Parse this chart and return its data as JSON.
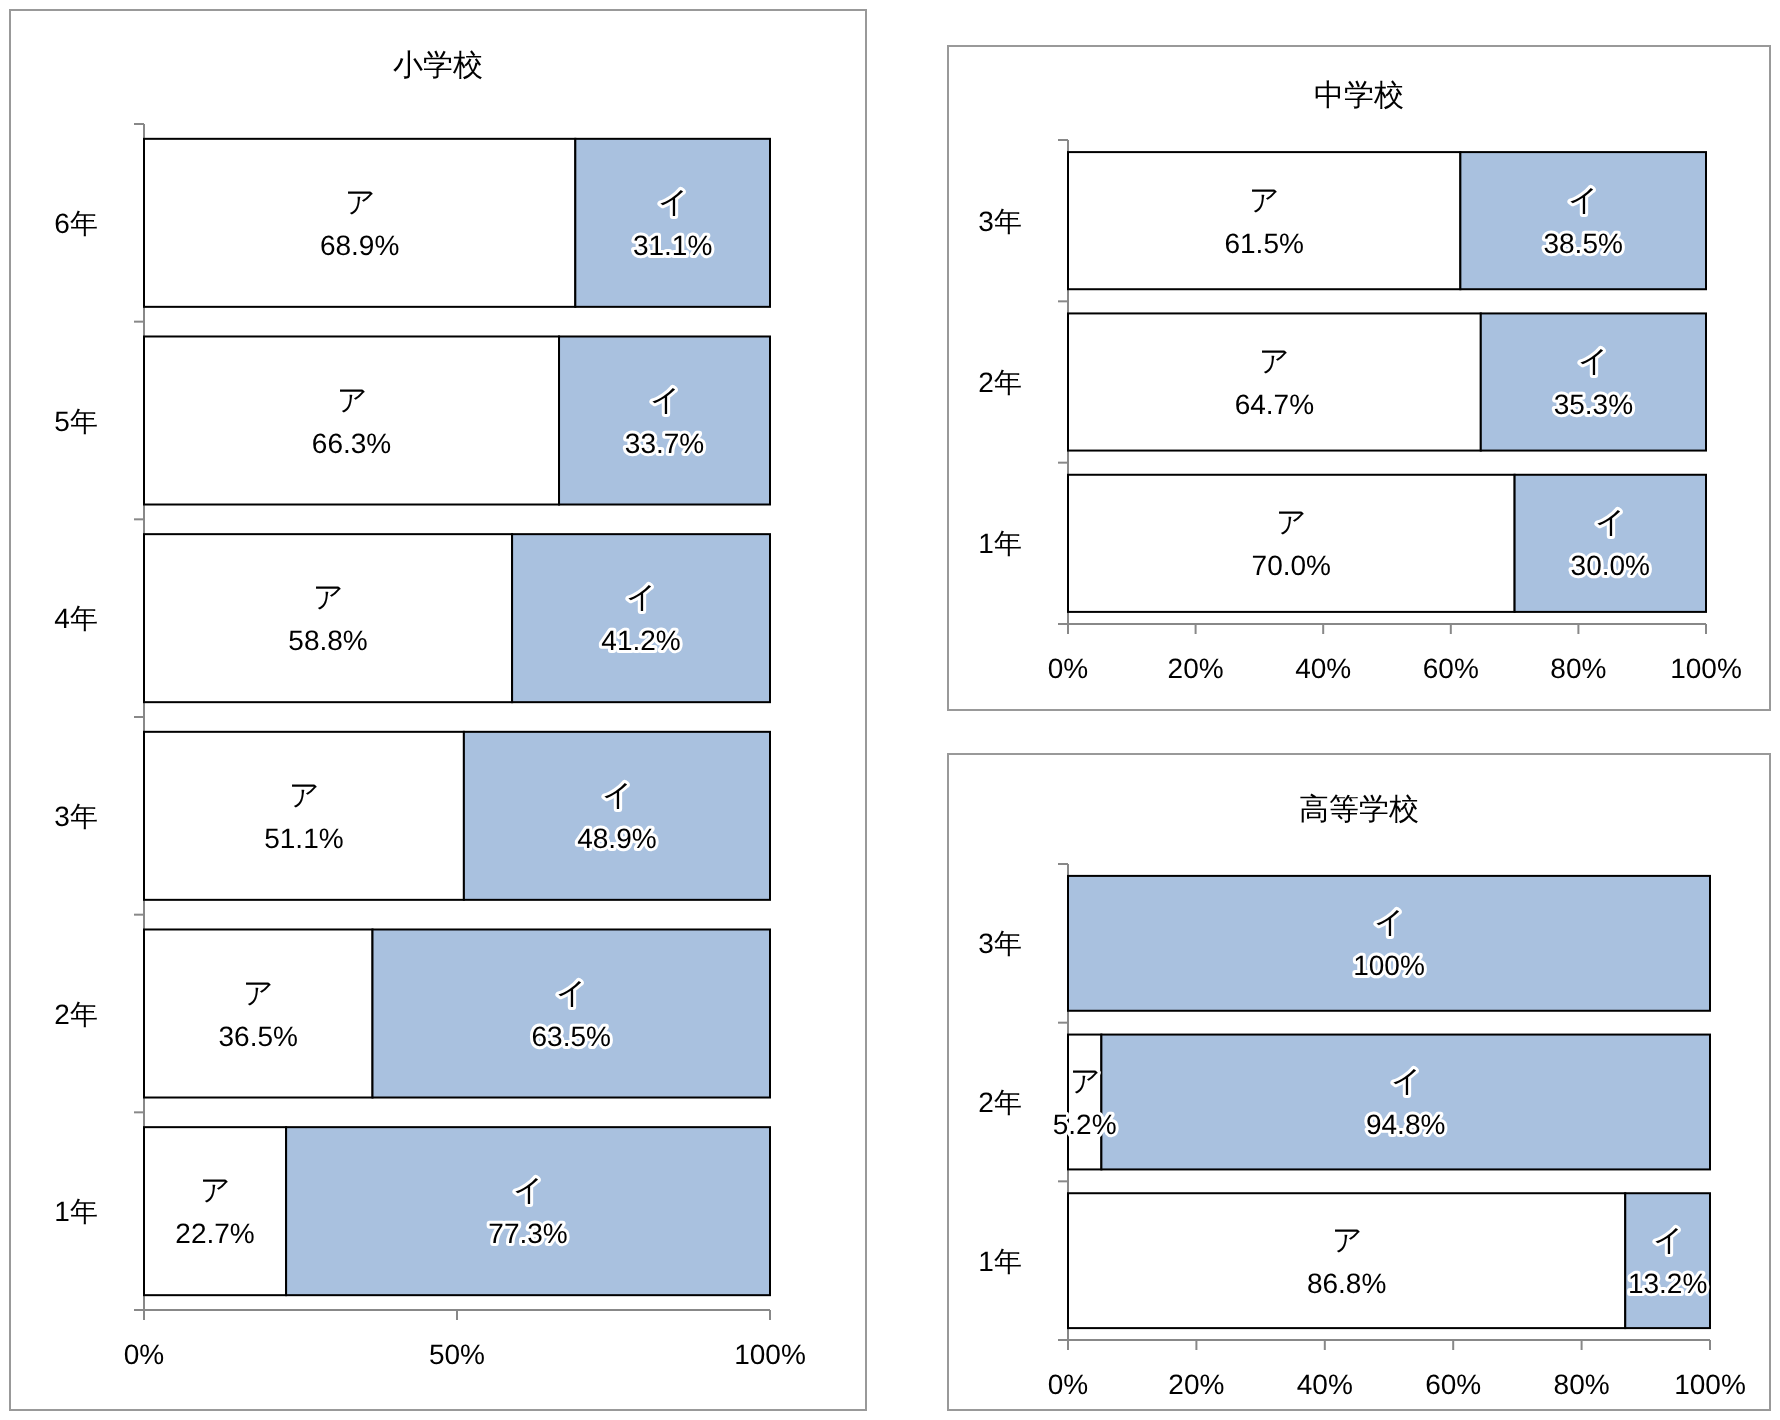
{
  "chart_data": [
    {
      "type": "bar",
      "title": "小学校",
      "orientation": "horizontal",
      "stacked": true,
      "legend": false,
      "grid": false,
      "categories": [
        "6年",
        "5年",
        "4年",
        "3年",
        "2年",
        "1年"
      ],
      "xlim": [
        0,
        100
      ],
      "xticks": [
        {
          "value": 0,
          "label": "0%"
        },
        {
          "value": 50,
          "label": "50%"
        },
        {
          "value": 100,
          "label": "100%"
        }
      ],
      "series": [
        {
          "name": "ア",
          "color": "#ffffff",
          "values": [
            68.9,
            66.3,
            58.8,
            51.1,
            36.5,
            22.7
          ],
          "value_labels": [
            "68.9%",
            "66.3%",
            "58.8%",
            "51.1%",
            "36.5%",
            "22.7%"
          ]
        },
        {
          "name": "イ",
          "color": "#a9c1df",
          "values": [
            31.1,
            33.7,
            41.2,
            48.9,
            63.5,
            77.3
          ],
          "value_labels": [
            "31.1%",
            "33.7%",
            "41.2%",
            "48.9%",
            "63.5%",
            "77.3%"
          ]
        }
      ]
    },
    {
      "type": "bar",
      "title": "中学校",
      "orientation": "horizontal",
      "stacked": true,
      "legend": false,
      "grid": false,
      "categories": [
        "3年",
        "2年",
        "1年"
      ],
      "xlim": [
        0,
        100
      ],
      "xticks": [
        {
          "value": 0,
          "label": "0%"
        },
        {
          "value": 20,
          "label": "20%"
        },
        {
          "value": 40,
          "label": "40%"
        },
        {
          "value": 60,
          "label": "60%"
        },
        {
          "value": 80,
          "label": "80%"
        },
        {
          "value": 100,
          "label": "100%"
        }
      ],
      "series": [
        {
          "name": "ア",
          "color": "#ffffff",
          "values": [
            61.5,
            64.7,
            70.0
          ],
          "value_labels": [
            "61.5%",
            "64.7%",
            "70.0%"
          ]
        },
        {
          "name": "イ",
          "color": "#a9c1df",
          "values": [
            38.5,
            35.3,
            30.0
          ],
          "value_labels": [
            "38.5%",
            "35.3%",
            "30.0%"
          ]
        }
      ]
    },
    {
      "type": "bar",
      "title": "高等学校",
      "orientation": "horizontal",
      "stacked": true,
      "legend": false,
      "grid": false,
      "categories": [
        "3年",
        "2年",
        "1年"
      ],
      "xlim": [
        0,
        100
      ],
      "xticks": [
        {
          "value": 0,
          "label": "0%"
        },
        {
          "value": 20,
          "label": "20%"
        },
        {
          "value": 40,
          "label": "40%"
        },
        {
          "value": 60,
          "label": "60%"
        },
        {
          "value": 80,
          "label": "80%"
        },
        {
          "value": 100,
          "label": "100%"
        }
      ],
      "series": [
        {
          "name": "ア",
          "color": "#ffffff",
          "values": [
            0,
            5.2,
            86.8
          ],
          "value_labels": [
            null,
            "5.2%",
            "86.8%"
          ]
        },
        {
          "name": "イ",
          "color": "#a9c1df",
          "values": [
            100,
            94.8,
            13.2
          ],
          "value_labels": [
            "100%",
            "94.8%",
            "13.2%"
          ]
        }
      ]
    }
  ]
}
